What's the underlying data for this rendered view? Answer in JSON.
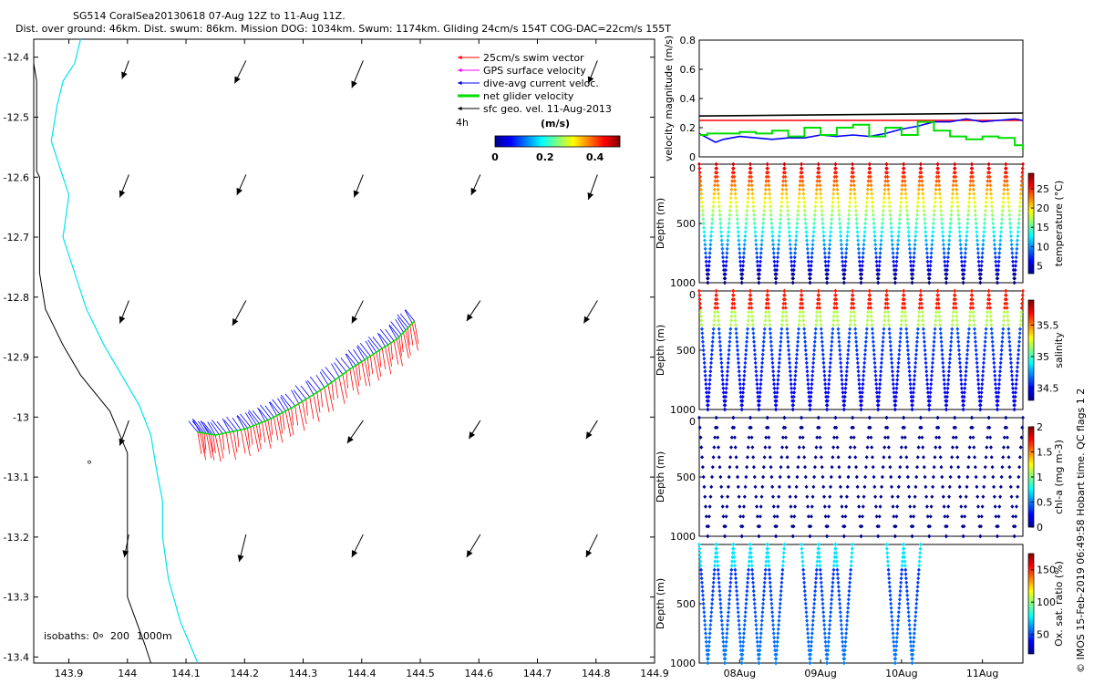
{
  "header": {
    "line1": "SG514 CoralSea20130618 07-Aug 12Z to 11-Aug 11Z.",
    "line2": "Dist. over ground: 46km. Dist. swum: 86km. Mission DOG: 1034km. Swum: 1174km. Gliding 24cm/s 154T COG-DAC=22cm/s 155T"
  },
  "credit": "© IMOS 15-Feb-2019 06:49:58 Hobart time. QC flags 1  2",
  "colors": {
    "swim": "#ff0000",
    "gps": "#ff00ff",
    "dac": "#0000ff",
    "net": "#00dd00",
    "sfc": "#000000",
    "coast": "#00e5ee",
    "bath": "#000000"
  },
  "chart_data": [
    {
      "type": "map",
      "xlabel": "",
      "ylabel": "",
      "xlim": [
        143.84,
        144.9
      ],
      "ylim": [
        -13.41,
        -12.37
      ],
      "xticks": [
        "143.9",
        "144",
        "144.1",
        "144.2",
        "144.3",
        "144.4",
        "144.5",
        "144.6",
        "144.7",
        "144.8",
        "144.9"
      ],
      "yticks": [
        "-12.4",
        "-12.5",
        "-12.6",
        "-12.7",
        "-12.8",
        "-12.9",
        "-13",
        "-13.1",
        "-13.2",
        "-13.3",
        "-13.4"
      ],
      "legend": {
        "entries": [
          "25cm/s swim vector",
          "GPS surface velocity",
          "dive-avg current veloc.",
          "net glider velocity",
          "sfc geo. vel. 11-Aug-2013"
        ],
        "note": "4h",
        "colorbar_title": "(m/s)",
        "colorbar_ticks": [
          "0",
          "0.2",
          "0.4"
        ]
      },
      "isobath_label": "isobaths: 0",
      "isobath_levels": [
        "200",
        "1000m"
      ],
      "geo_vectors": {
        "lons": [
          143.99,
          144.19,
          144.39,
          144.59,
          144.79
        ],
        "lats": [
          -12.43,
          -12.62,
          -12.83,
          -13.03,
          -13.22
        ],
        "rows": [
          [
            [
              -0.03,
              -0.08
            ],
            [
              -0.05,
              -0.1
            ],
            [
              -0.05,
              -0.12
            ],
            null,
            [
              -0.04,
              -0.1
            ]
          ],
          [
            [
              -0.04,
              -0.1
            ],
            [
              -0.04,
              -0.09
            ],
            [
              -0.04,
              -0.1
            ],
            [
              -0.04,
              -0.09
            ],
            [
              -0.04,
              -0.11
            ]
          ],
          [
            [
              -0.04,
              -0.1
            ],
            [
              -0.06,
              -0.11
            ],
            [
              -0.05,
              -0.1
            ],
            [
              -0.06,
              -0.09
            ],
            [
              -0.06,
              -0.1
            ]
          ],
          [
            [
              -0.04,
              -0.11
            ],
            null,
            [
              -0.07,
              -0.1
            ],
            [
              -0.05,
              -0.08
            ],
            [
              -0.05,
              -0.08
            ]
          ],
          [
            [
              -0.02,
              -0.1
            ],
            [
              -0.03,
              -0.12
            ],
            [
              -0.05,
              -0.1
            ],
            [
              -0.06,
              -0.1
            ],
            [
              -0.05,
              -0.1
            ]
          ]
        ]
      },
      "track": {
        "lon": [
          144.12,
          144.15,
          144.2,
          144.24,
          144.28,
          144.33,
          144.38,
          144.42,
          144.46,
          144.49
        ],
        "lat": [
          -13.025,
          -13.03,
          -13.02,
          -13.005,
          -12.985,
          -12.955,
          -12.92,
          -12.895,
          -12.87,
          -12.84
        ]
      }
    },
    {
      "type": "line",
      "ylabel": "velocity magnitude (m/s)",
      "ylim": [
        0,
        0.8
      ],
      "yticks": [
        "0",
        "0.2",
        "0.4",
        "0.6",
        "0.8"
      ],
      "xlim_days": [
        7.5,
        11.5
      ],
      "series": [
        {
          "name": "sfc geo. vel. 11-Aug-2013",
          "color": "#000000",
          "t": [
            7.5,
            11.5
          ],
          "v": [
            0.28,
            0.3
          ]
        },
        {
          "name": "25cm/s swim vector",
          "color": "#ff0000",
          "t": [
            7.5,
            11.5
          ],
          "v": [
            0.25,
            0.25
          ]
        },
        {
          "name": "dive-avg current veloc.",
          "color": "#0000ff",
          "t": [
            7.5,
            7.6,
            7.7,
            7.8,
            7.9,
            8.0,
            8.2,
            8.4,
            8.6,
            8.8,
            9.0,
            9.2,
            9.4,
            9.6,
            9.8,
            10.0,
            10.2,
            10.4,
            10.6,
            10.8,
            11.0,
            11.2,
            11.4,
            11.5
          ],
          "v": [
            0.16,
            0.13,
            0.1,
            0.12,
            0.13,
            0.14,
            0.13,
            0.12,
            0.13,
            0.13,
            0.15,
            0.14,
            0.15,
            0.14,
            0.16,
            0.19,
            0.21,
            0.24,
            0.24,
            0.26,
            0.24,
            0.25,
            0.26,
            0.25
          ]
        },
        {
          "name": "net glider velocity",
          "color": "#00dd00",
          "t": [
            7.5,
            7.6,
            7.8,
            8.0,
            8.2,
            8.4,
            8.6,
            8.8,
            9.0,
            9.2,
            9.4,
            9.6,
            9.8,
            10.0,
            10.2,
            10.4,
            10.6,
            10.8,
            11.0,
            11.2,
            11.4,
            11.5
          ],
          "v": [
            0.15,
            0.16,
            0.16,
            0.17,
            0.16,
            0.18,
            0.14,
            0.2,
            0.15,
            0.2,
            0.22,
            0.14,
            0.2,
            0.15,
            0.24,
            0.18,
            0.14,
            0.12,
            0.14,
            0.13,
            0.08,
            0.05
          ]
        }
      ]
    },
    {
      "type": "scatter",
      "ylabel": "Depth (m)",
      "cblabel": "temperature (°C)",
      "yticks": [
        "0",
        "500",
        "1000"
      ],
      "cbticks": [
        "5",
        "10",
        "15",
        "20",
        "25"
      ],
      "clim": [
        3,
        29
      ],
      "variable": "temperature"
    },
    {
      "type": "scatter",
      "ylabel": "Depth (m)",
      "cblabel": "salinity",
      "yticks": [
        "0",
        "500",
        "1000"
      ],
      "cbticks": [
        "34.5",
        "35",
        "35.5"
      ],
      "clim": [
        34.3,
        35.9
      ],
      "variable": "salinity"
    },
    {
      "type": "scatter",
      "ylabel": "Depth (m)",
      "cblabel": "chl-a (mg m-3)",
      "yticks": [
        "0",
        "500",
        "1000"
      ],
      "cbticks": [
        "0",
        "0.5",
        "1",
        "1.5",
        "2"
      ],
      "clim": [
        0,
        2
      ],
      "variable": "chlorophyll"
    },
    {
      "type": "scatter",
      "ylabel": "Depth (m)",
      "cblabel": "Ox. sat. ratio (%)",
      "yticks": [
        "500",
        "1000"
      ],
      "cbticks": [
        "50",
        "100",
        "150"
      ],
      "clim": [
        20,
        175
      ],
      "variable": "oxygen",
      "xticks": [
        "08Aug",
        "09Aug",
        "10Aug",
        "11Aug"
      ]
    }
  ]
}
